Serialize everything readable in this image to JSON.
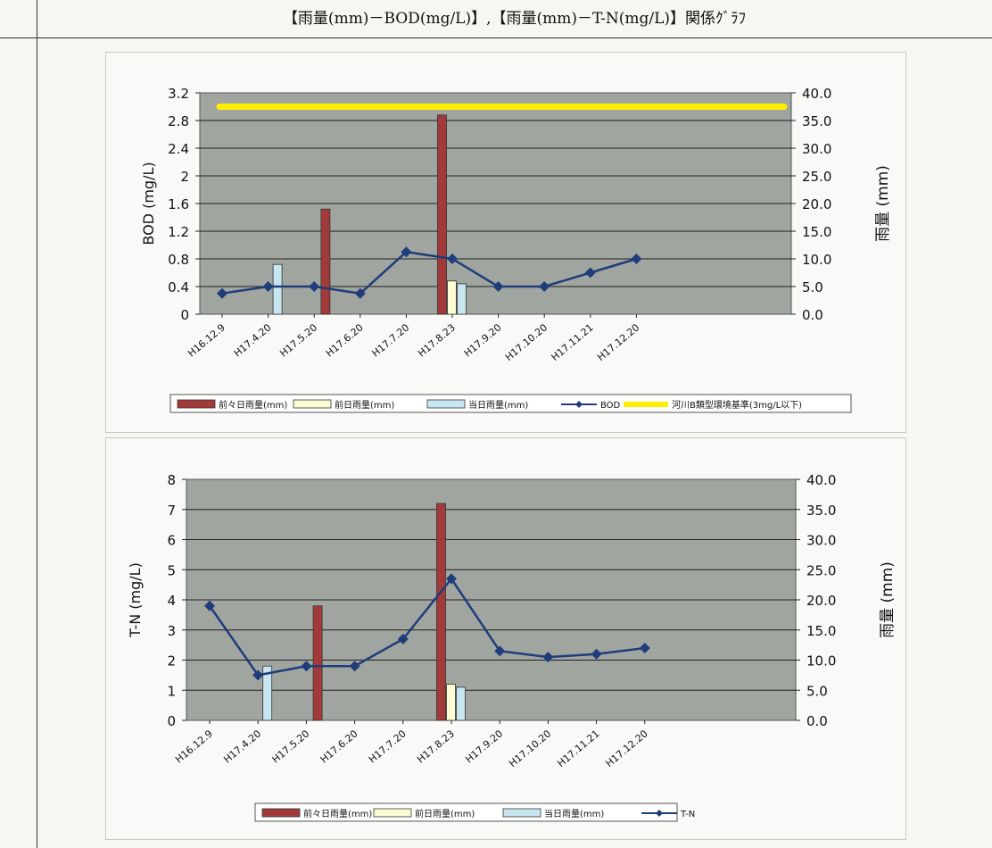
{
  "header": {
    "title": "【雨量(mm)－BOD(mg/L)】,【雨量(mm)－T-N(mg/L)】関係ｸﾞﾗﾌ"
  },
  "colors": {
    "plot_bg": "#a0a5a0",
    "grid": "#202020",
    "rain_2days": "#a23a3a",
    "rain_prev": "#fdfbd2",
    "rain_today": "#c8e6f0",
    "line": "#1f3d7a",
    "standard": "#ffee00"
  },
  "chart_data": [
    {
      "type": "bar",
      "categories": [
        "H16.12.9",
        "H17.4.20",
        "H17.5.20",
        "H17.6.20",
        "H17.7.20",
        "H17.8.23",
        "H17.9.20",
        "H17.10.20",
        "H17.11.21",
        "H17.12.20"
      ],
      "ylabel": "BOD (mg/L)",
      "y2label": "雨量 (mm)",
      "ylim": [
        0,
        3.2
      ],
      "y2lim": [
        0,
        40
      ],
      "yticks": [
        "0",
        "0.4",
        "0.8",
        "1.2",
        "1.6",
        "2",
        "2.4",
        "2.8",
        "3.2"
      ],
      "y2ticks": [
        "0.0",
        "5.0",
        "10.0",
        "15.0",
        "20.0",
        "25.0",
        "30.0",
        "35.0",
        "40.0"
      ],
      "grid": true,
      "legend_position": "bottom",
      "series": [
        {
          "name": "前々日雨量(mm)",
          "kind": "bar",
          "axis": "y2",
          "values": [
            0,
            0,
            19,
            0,
            0,
            36,
            0,
            0,
            0,
            0
          ]
        },
        {
          "name": "前日雨量(mm)",
          "kind": "bar",
          "axis": "y2",
          "values": [
            0,
            0,
            0,
            0,
            0,
            6,
            0,
            0,
            0,
            0
          ]
        },
        {
          "name": "当日雨量(mm)",
          "kind": "bar",
          "axis": "y2",
          "values": [
            0,
            9,
            0,
            0,
            0,
            5.5,
            0,
            0,
            0,
            0
          ]
        },
        {
          "name": "BOD",
          "kind": "line",
          "axis": "y",
          "values": [
            0.3,
            0.4,
            0.4,
            0.3,
            0.9,
            0.8,
            0.4,
            0.4,
            0.6,
            0.8
          ]
        },
        {
          "name": "河川B類型環境基準(3mg/L以下)",
          "kind": "hline",
          "axis": "y",
          "value": 3
        }
      ]
    },
    {
      "type": "bar",
      "categories": [
        "H16.12.9",
        "H17.4.20",
        "H17.5.20",
        "H17.6.20",
        "H17.7.20",
        "H17.8.23",
        "H17.9.20",
        "H17.10.20",
        "H17.11.21",
        "H17.12.20"
      ],
      "ylabel": "T-N (mg/L)",
      "y2label": "雨量 (mm)",
      "ylim": [
        0,
        8
      ],
      "y2lim": [
        0,
        40
      ],
      "yticks": [
        "0",
        "1",
        "2",
        "3",
        "4",
        "5",
        "6",
        "7",
        "8"
      ],
      "y2ticks": [
        "0.0",
        "5.0",
        "10.0",
        "15.0",
        "20.0",
        "25.0",
        "30.0",
        "35.0",
        "40.0"
      ],
      "grid": true,
      "legend_position": "bottom",
      "series": [
        {
          "name": "前々日雨量(mm)",
          "kind": "bar",
          "axis": "y2",
          "values": [
            0,
            0,
            19,
            0,
            0,
            36,
            0,
            0,
            0,
            0
          ]
        },
        {
          "name": "前日雨量(mm)",
          "kind": "bar",
          "axis": "y2",
          "values": [
            0,
            0,
            0,
            0,
            0,
            6,
            0,
            0,
            0,
            0
          ]
        },
        {
          "name": "当日雨量(mm)",
          "kind": "bar",
          "axis": "y2",
          "values": [
            0,
            9,
            0,
            0,
            0,
            5.5,
            0,
            0,
            0,
            0
          ]
        },
        {
          "name": "T-N",
          "kind": "line",
          "axis": "y",
          "values": [
            3.8,
            1.5,
            1.8,
            1.8,
            2.7,
            4.7,
            2.3,
            2.1,
            2.2,
            2.4
          ]
        }
      ]
    }
  ]
}
